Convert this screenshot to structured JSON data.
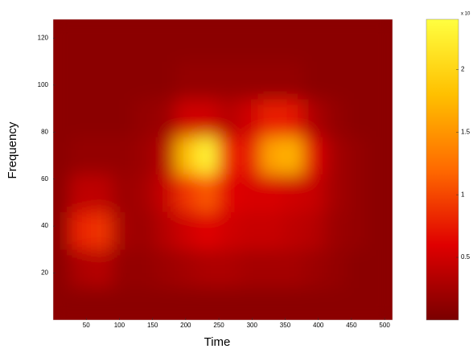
{
  "chart_data": {
    "type": "heatmap",
    "x_label": "Time",
    "y_label": "Frequency",
    "x": [
      16,
      48,
      80,
      112,
      144,
      176,
      208,
      240,
      272,
      304,
      336,
      368,
      400,
      432,
      464,
      496
    ],
    "y": [
      8,
      24,
      40,
      56,
      72,
      88,
      104,
      120
    ],
    "z": [
      [
        0.1,
        0.1,
        0.1,
        0.1,
        0.1,
        0.1,
        0.1,
        0.1,
        0.1,
        0.1,
        0.1,
        0.1,
        0.1,
        0.1,
        0.1,
        0.1
      ],
      [
        0.1,
        0.3,
        0.35,
        0.15,
        0.15,
        0.2,
        0.25,
        0.3,
        0.3,
        0.25,
        0.25,
        0.25,
        0.2,
        0.15,
        0.1,
        0.1
      ],
      [
        0.1,
        0.8,
        0.9,
        0.25,
        0.2,
        0.35,
        0.5,
        0.6,
        0.5,
        0.45,
        0.45,
        0.4,
        0.35,
        0.2,
        0.15,
        0.1
      ],
      [
        0.1,
        0.4,
        0.4,
        0.2,
        0.25,
        0.45,
        0.9,
        1.1,
        0.6,
        0.55,
        0.55,
        0.5,
        0.45,
        0.25,
        0.15,
        0.1
      ],
      [
        0.1,
        0.15,
        0.15,
        0.15,
        0.2,
        0.35,
        1.8,
        2.3,
        0.8,
        0.7,
        1.6,
        1.7,
        0.6,
        0.25,
        0.15,
        0.1
      ],
      [
        0.1,
        0.1,
        0.1,
        0.1,
        0.15,
        0.2,
        0.5,
        0.5,
        0.35,
        0.5,
        0.8,
        0.7,
        0.3,
        0.15,
        0.1,
        0.1
      ],
      [
        0.1,
        0.1,
        0.1,
        0.1,
        0.1,
        0.1,
        0.15,
        0.15,
        0.15,
        0.15,
        0.15,
        0.15,
        0.1,
        0.1,
        0.1,
        0.1
      ],
      [
        0.1,
        0.1,
        0.1,
        0.1,
        0.1,
        0.1,
        0.1,
        0.1,
        0.1,
        0.1,
        0.1,
        0.1,
        0.1,
        0.1,
        0.1,
        0.1
      ]
    ],
    "xlim": [
      0,
      512
    ],
    "ylim": [
      0,
      128
    ],
    "xticks": [
      50,
      100,
      150,
      200,
      250,
      300,
      350,
      400,
      450,
      500
    ],
    "yticks": [
      20,
      40,
      60,
      80,
      100,
      120
    ],
    "clim": [
      0,
      2.4
    ],
    "cticks": [
      0.5,
      1,
      1.5,
      2
    ],
    "colorbar_label": "x 10",
    "colormap": [
      "#7a0000",
      "#e00000",
      "#ff6a00",
      "#ffc000",
      "#ffff40"
    ]
  }
}
